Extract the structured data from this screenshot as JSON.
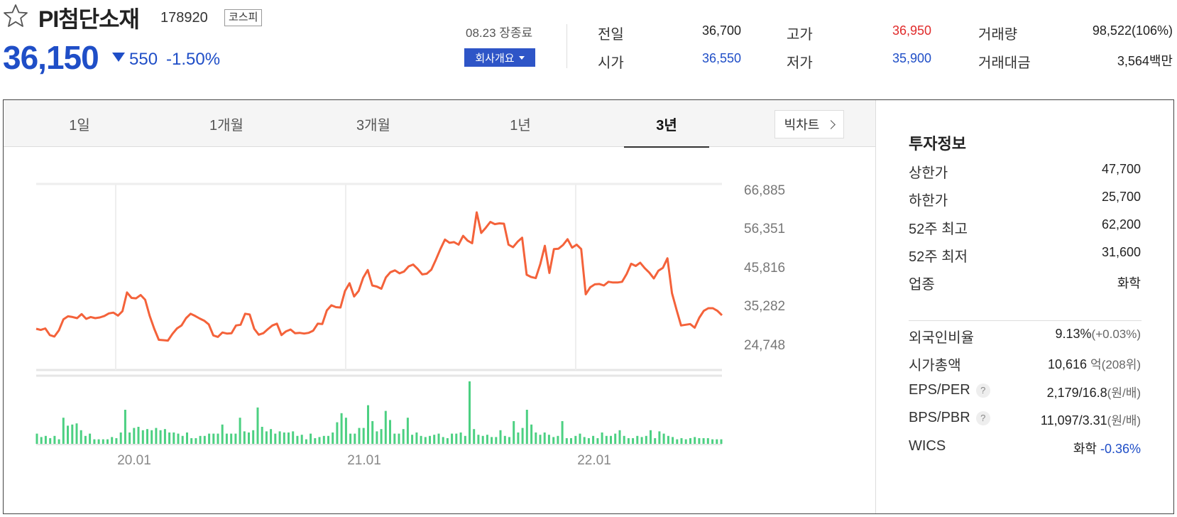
{
  "header": {
    "name": "PI첨단소재",
    "code": "178920",
    "market": "코스피",
    "price": "36,150",
    "change": "550",
    "change_rate": "-1.50%",
    "close_date": "08.23 장종료",
    "company_btn": "회사개요"
  },
  "quote": {
    "prev_label": "전일",
    "prev": "36,700",
    "open_label": "시가",
    "open": "36,550",
    "high_label": "고가",
    "high": "36,950",
    "low_label": "저가",
    "low": "35,900",
    "vol_label": "거래량",
    "vol": "98,522(106%)",
    "amt_label": "거래대금",
    "amt": "3,564백만"
  },
  "tabs": [
    "1일",
    "1개월",
    "3개월",
    "1년",
    "3년"
  ],
  "active_tab": 4,
  "bigchart_label": "빅차트",
  "colors": {
    "price_line": "#f4623a",
    "volume_bar": "#4cd082",
    "up": "#e02b2b",
    "down": "#1f4ec7"
  },
  "chart_data": {
    "type": "line",
    "y_ticks": [
      "66,885",
      "56,351",
      "45,816",
      "35,282",
      "24,748"
    ],
    "y_range": [
      24748,
      66885
    ],
    "x_ticks": [
      "20.01",
      "21.01",
      "22.01"
    ],
    "price": [
      29000,
      28700,
      29100,
      27300,
      26900,
      28600,
      31600,
      32400,
      32200,
      31900,
      33000,
      31700,
      32200,
      31900,
      32100,
      32500,
      33200,
      33400,
      32600,
      33800,
      38900,
      37400,
      37300,
      38200,
      36900,
      32500,
      29000,
      26000,
      25900,
      25800,
      27600,
      29100,
      29900,
      31900,
      33100,
      32500,
      31800,
      31200,
      30200,
      27200,
      26800,
      28000,
      27700,
      27800,
      29900,
      30100,
      33100,
      32900,
      29000,
      27400,
      27800,
      28900,
      29900,
      30400,
      27300,
      28300,
      28800,
      27800,
      27900,
      27700,
      27900,
      28500,
      30400,
      30300,
      34000,
      35400,
      34900,
      34800,
      39300,
      41400,
      37800,
      39300,
      42900,
      45000,
      40800,
      40500,
      39900,
      43000,
      44400,
      44900,
      44100,
      44600,
      46000,
      46500,
      45300,
      43800,
      44000,
      45100,
      47800,
      50700,
      53300,
      52400,
      52600,
      51900,
      54300,
      53000,
      52300,
      60700,
      55100,
      56500,
      58100,
      57500,
      57700,
      57600,
      51900,
      51200,
      52700,
      53800,
      43700,
      43100,
      42800,
      46600,
      51600,
      44200,
      50700,
      50800,
      51800,
      53400,
      51100,
      51900,
      50700,
      38400,
      40300,
      41100,
      41200,
      40800,
      41800,
      41600,
      41600,
      41800,
      43900,
      46700,
      46100,
      47000,
      45500,
      44300,
      42700,
      44800,
      45600,
      48200,
      38700,
      34200,
      29900,
      30100,
      30300,
      29300,
      32000,
      33900,
      34600,
      34600,
      33900,
      32700
    ],
    "volume": [
      18,
      12,
      14,
      10,
      14,
      8,
      46,
      32,
      34,
      36,
      24,
      14,
      18,
      8,
      8,
      8,
      8,
      12,
      10,
      20,
      60,
      20,
      28,
      30,
      24,
      26,
      24,
      28,
      24,
      26,
      20,
      20,
      18,
      14,
      20,
      10,
      10,
      14,
      14,
      18,
      18,
      18,
      34,
      18,
      18,
      18,
      46,
      22,
      20,
      24,
      64,
      30,
      22,
      26,
      18,
      22,
      20,
      20,
      22,
      14,
      16,
      8,
      18,
      10,
      12,
      14,
      14,
      20,
      38,
      54,
      46,
      18,
      18,
      28,
      28,
      68,
      40,
      22,
      26,
      58,
      42,
      18,
      18,
      26,
      46,
      16,
      20,
      14,
      12,
      14,
      16,
      18,
      12,
      10,
      18,
      18,
      20,
      14,
      110,
      26,
      16,
      14,
      16,
      12,
      12,
      24,
      14,
      12,
      40,
      20,
      28,
      60,
      34,
      20,
      16,
      20,
      16,
      12,
      14,
      40,
      10,
      10,
      14,
      18,
      12,
      10,
      14,
      10,
      20,
      14,
      14,
      18,
      24,
      14,
      10,
      10,
      14,
      12,
      14,
      24,
      10,
      22,
      18,
      14,
      12,
      8,
      10,
      8,
      10,
      12,
      10,
      10,
      10,
      8,
      8,
      8
    ]
  },
  "info": {
    "title": "투자정보",
    "upper_label": "상한가",
    "upper": "47,700",
    "lower_label": "하한가",
    "lower": "25,700",
    "w52h_label": "52주 최고",
    "w52h": "62,200",
    "w52l_label": "52주 최저",
    "w52l": "31,600",
    "sector_label": "업종",
    "sector": "화학",
    "foreign_label": "외국인비율",
    "foreign": "9.13%",
    "foreign_chg": "(+0.03%)",
    "mcap_label": "시가총액",
    "mcap": "10,616",
    "mcap_unit": "억(208위)",
    "eps_label": "EPS/PER",
    "eps": "2,179/16.8",
    "eps_unit": "(원/배)",
    "bps_label": "BPS/PBR",
    "bps": "11,097/3.31",
    "bps_unit": "(원/배)",
    "wics_label": "WICS",
    "wics": "화학",
    "wics_chg": "-0.36%",
    "help_mark": "?"
  }
}
